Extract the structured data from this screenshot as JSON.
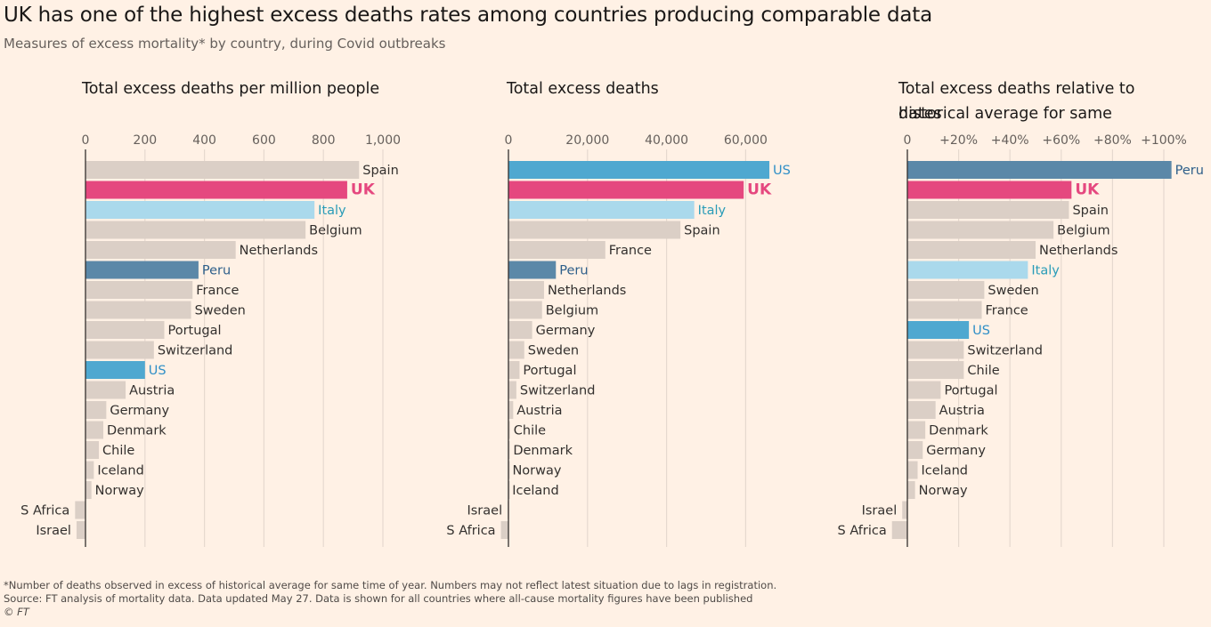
{
  "header": {
    "title": "UK has one of the highest excess deaths rates among countries producing comparable data",
    "subtitle": "Measures of excess mortality* by country, during Covid outbreaks"
  },
  "footer": {
    "note": "*Number of deaths observed in excess of historical average for same time of year. Numbers may not reflect latest situation due to lags in registration.",
    "source": "Source: FT analysis of mortality data. Data updated May 27. Data is shown for all countries where all-cause mortality figures have been published",
    "credit": "© FT"
  },
  "colors": {
    "background": "#fff1e5",
    "default_bar": "#dbcfc6",
    "UK": "#e5487f",
    "Italy": "#aad9ec",
    "Peru": "#5b88a8",
    "US": "#4fa8d0",
    "Italy_label": "#2a9cb8",
    "Peru_label": "#2e5f8a",
    "US_label": "#2f8fc7",
    "gridline": "#e6d9cf",
    "axis": "#33302e"
  },
  "chart_data": [
    {
      "type": "bar",
      "orientation": "horizontal",
      "title": "Total excess deaths per million people",
      "xlim": [
        0,
        1000
      ],
      "xticks": [
        0,
        200,
        400,
        600,
        800,
        1000
      ],
      "xtick_labels": [
        "0",
        "200",
        "400",
        "600",
        "800",
        "1,000"
      ],
      "categories": [
        "Spain",
        "UK",
        "Italy",
        "Belgium",
        "Netherlands",
        "Peru",
        "France",
        "Sweden",
        "Portugal",
        "Switzerland",
        "US",
        "Austria",
        "Germany",
        "Denmark",
        "Chile",
        "Iceland",
        "Norway",
        "S Africa",
        "Israel"
      ],
      "values": [
        920,
        880,
        770,
        740,
        505,
        380,
        360,
        355,
        265,
        230,
        200,
        135,
        70,
        60,
        45,
        28,
        20,
        -35,
        -30
      ],
      "grid": true
    },
    {
      "type": "bar",
      "orientation": "horizontal",
      "title": "Total excess deaths",
      "xlim": [
        0,
        70000
      ],
      "xticks": [
        0,
        20000,
        40000,
        60000
      ],
      "xtick_labels": [
        "0",
        "20,000",
        "40,000",
        "60,000"
      ],
      "categories": [
        "US",
        "UK",
        "Italy",
        "Spain",
        "France",
        "Peru",
        "Netherlands",
        "Belgium",
        "Germany",
        "Sweden",
        "Portugal",
        "Switzerland",
        "Austria",
        "Chile",
        "Denmark",
        "Norway",
        "Iceland",
        "Israel",
        "S Africa"
      ],
      "values": [
        66000,
        59500,
        47000,
        43500,
        24500,
        12000,
        9000,
        8500,
        6000,
        4000,
        2800,
        2000,
        1200,
        400,
        300,
        100,
        50,
        -200,
        -1900
      ],
      "grid": true
    },
    {
      "type": "bar",
      "orientation": "horizontal",
      "title": "Total excess deaths relative to historical average for same dates",
      "xlim": [
        0,
        110
      ],
      "xticks": [
        0,
        20,
        40,
        60,
        80,
        100
      ],
      "xtick_labels": [
        "0",
        "+20%",
        "+40%",
        "+60%",
        "+80%",
        "+100%"
      ],
      "categories": [
        "Peru",
        "UK",
        "Spain",
        "Belgium",
        "Netherlands",
        "Italy",
        "Sweden",
        "France",
        "US",
        "Switzerland",
        "Chile",
        "Portugal",
        "Austria",
        "Denmark",
        "Germany",
        "Iceland",
        "Norway",
        "Israel",
        "S Africa"
      ],
      "values": [
        103,
        64,
        63,
        57,
        50,
        47,
        30,
        29,
        24,
        22,
        22,
        13,
        11,
        7,
        6,
        4,
        3,
        -2,
        -6
      ],
      "grid": true
    }
  ]
}
